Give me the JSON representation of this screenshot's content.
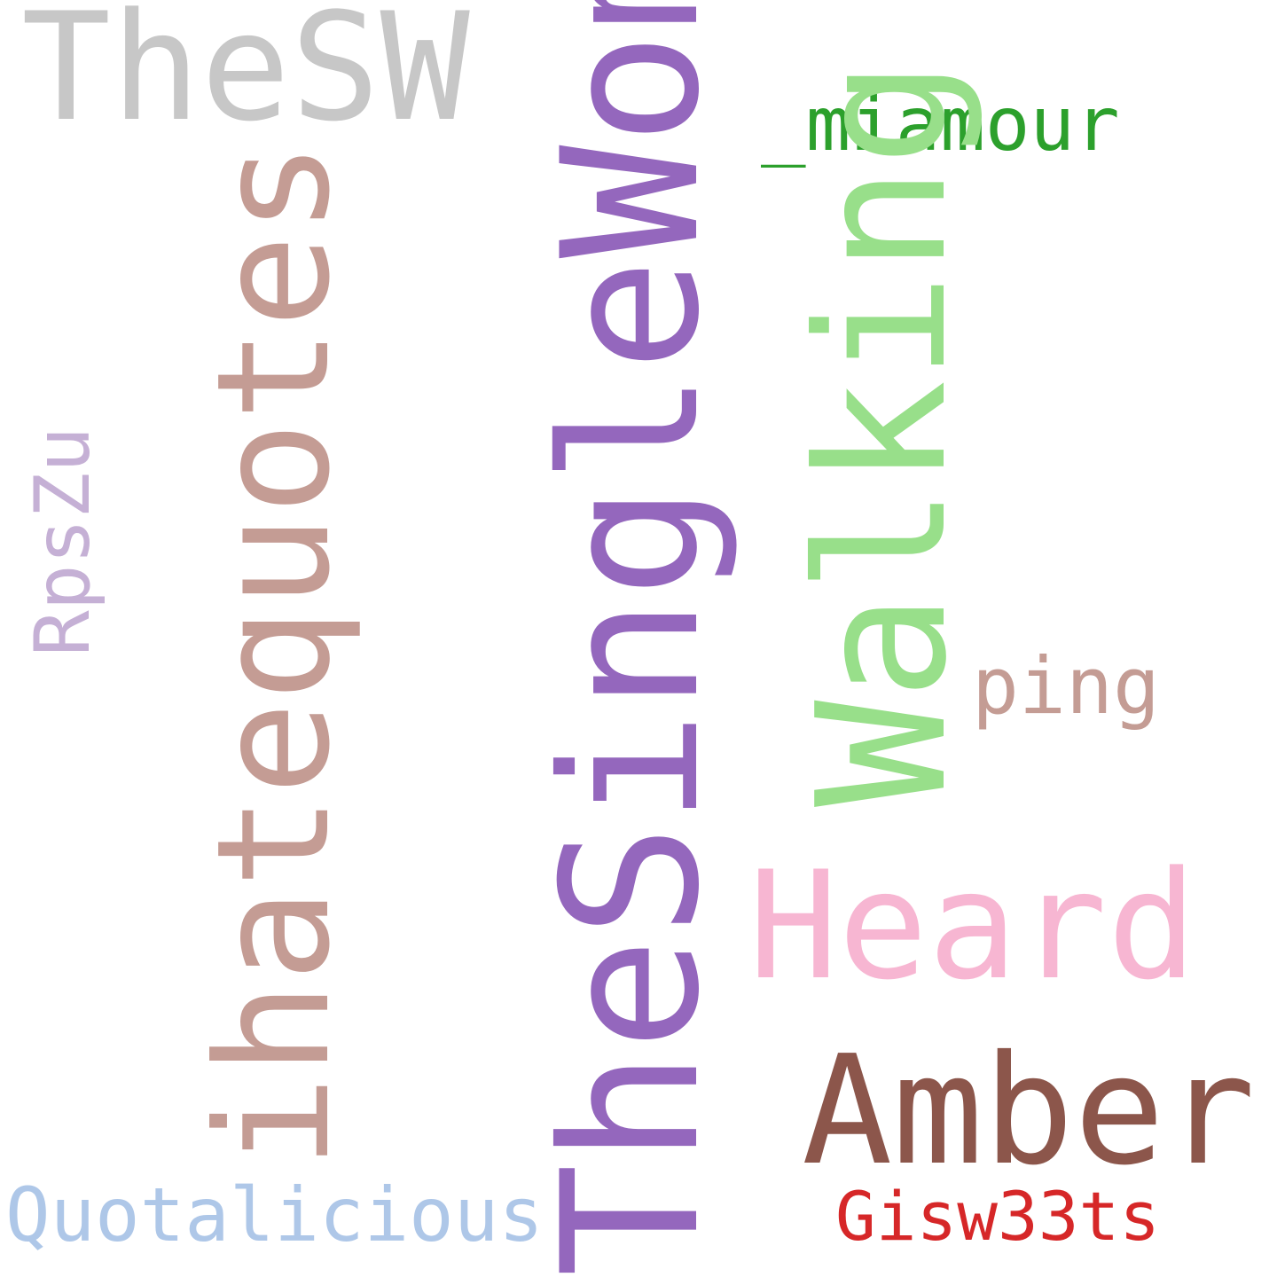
{
  "words": [
    {
      "text": "TheSW",
      "color": "#c7c7c7"
    },
    {
      "text": "_miamour",
      "color": "#2ca02c"
    },
    {
      "text": "ihatequotes",
      "color": "#c49c94"
    },
    {
      "text": "TheSingleWoman",
      "color": "#9467bd"
    },
    {
      "text": "Walking",
      "color": "#98df8a"
    },
    {
      "text": "RpsZu",
      "color": "#c5b0d5"
    },
    {
      "text": "ping",
      "color": "#c49c94"
    },
    {
      "text": "Heard",
      "color": "#f7b6d2"
    },
    {
      "text": "Amber",
      "color": "#8c564b"
    },
    {
      "text": "Quotalicious",
      "color": "#aec7e8"
    },
    {
      "text": "Gisw33ts",
      "color": "#d62728"
    }
  ]
}
